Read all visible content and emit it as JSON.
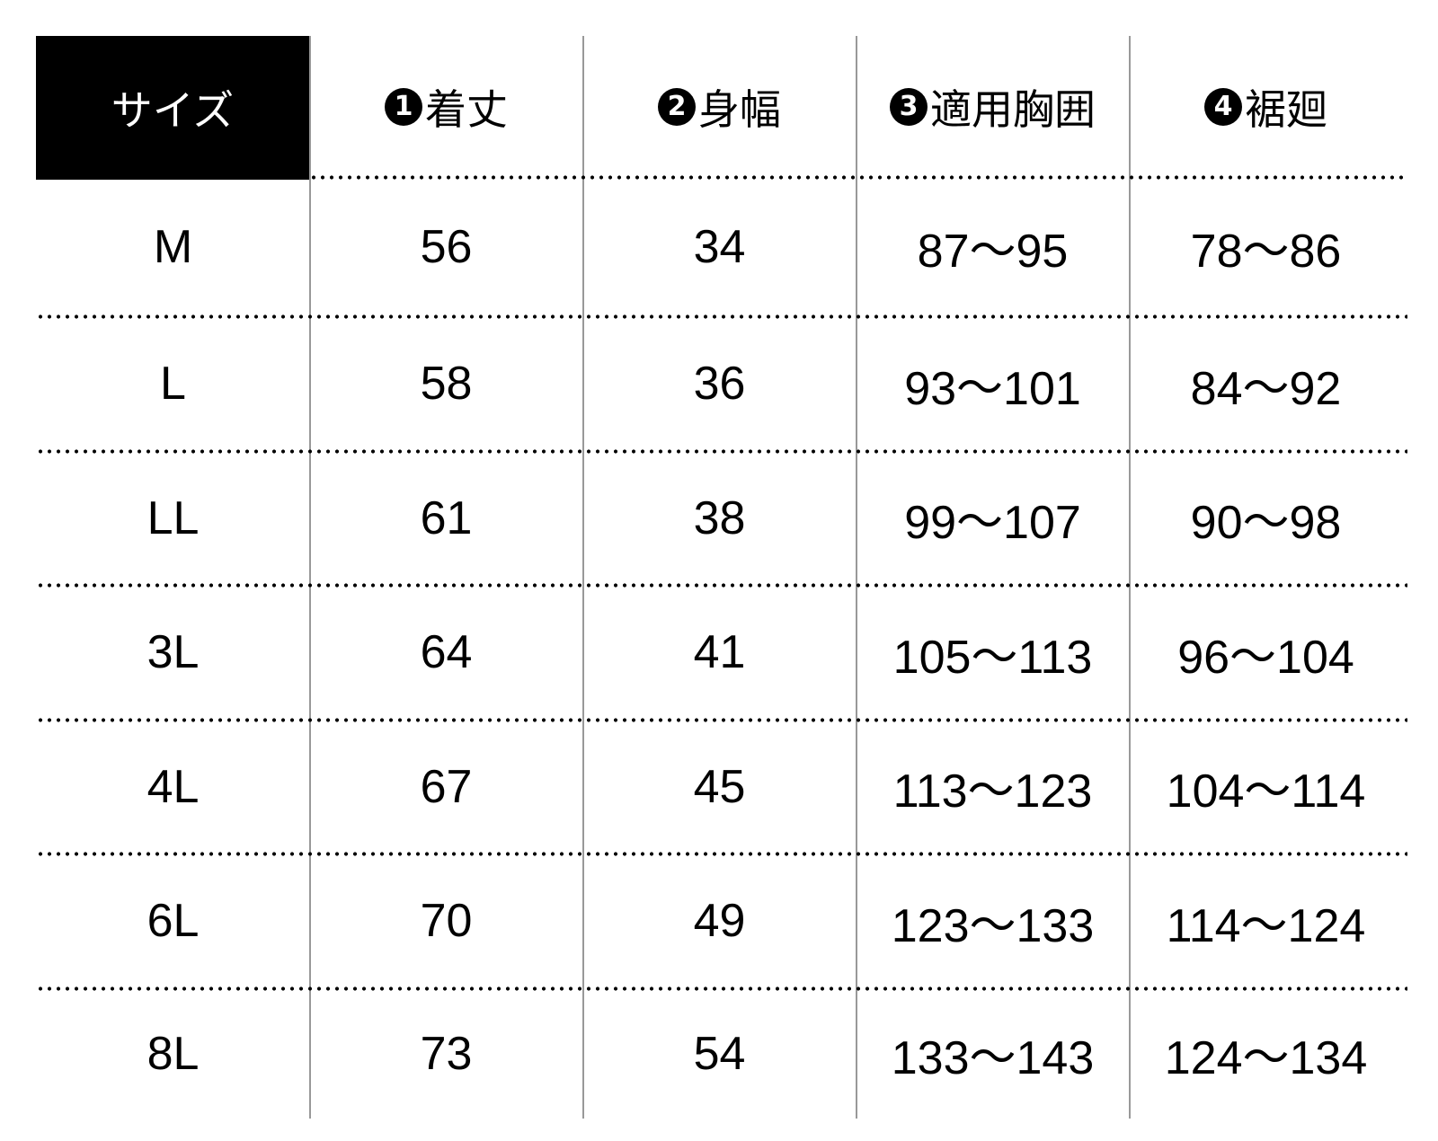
{
  "table": {
    "corner_label": "サイズ",
    "columns": [
      {
        "number": "1",
        "label": "着丈"
      },
      {
        "number": "2",
        "label": "身幅"
      },
      {
        "number": "3",
        "label": "適用胸囲"
      },
      {
        "number": "4",
        "label": "裾廻"
      }
    ],
    "rows": [
      {
        "size": "M",
        "values": [
          "56",
          "34",
          "87～95",
          "78～86"
        ]
      },
      {
        "size": "L",
        "values": [
          "58",
          "36",
          "93～101",
          "84～92"
        ]
      },
      {
        "size": "LL",
        "values": [
          "61",
          "38",
          "99～107",
          "90～98"
        ]
      },
      {
        "size": "3L",
        "values": [
          "64",
          "41",
          "105～113",
          "96～104"
        ]
      },
      {
        "size": "4L",
        "values": [
          "67",
          "45",
          "113～123",
          "104～114"
        ]
      },
      {
        "size": "6L",
        "values": [
          "70",
          "49",
          "123～133",
          "114～124"
        ]
      },
      {
        "size": "8L",
        "values": [
          "73",
          "54",
          "133～143",
          "124～134"
        ]
      }
    ]
  }
}
